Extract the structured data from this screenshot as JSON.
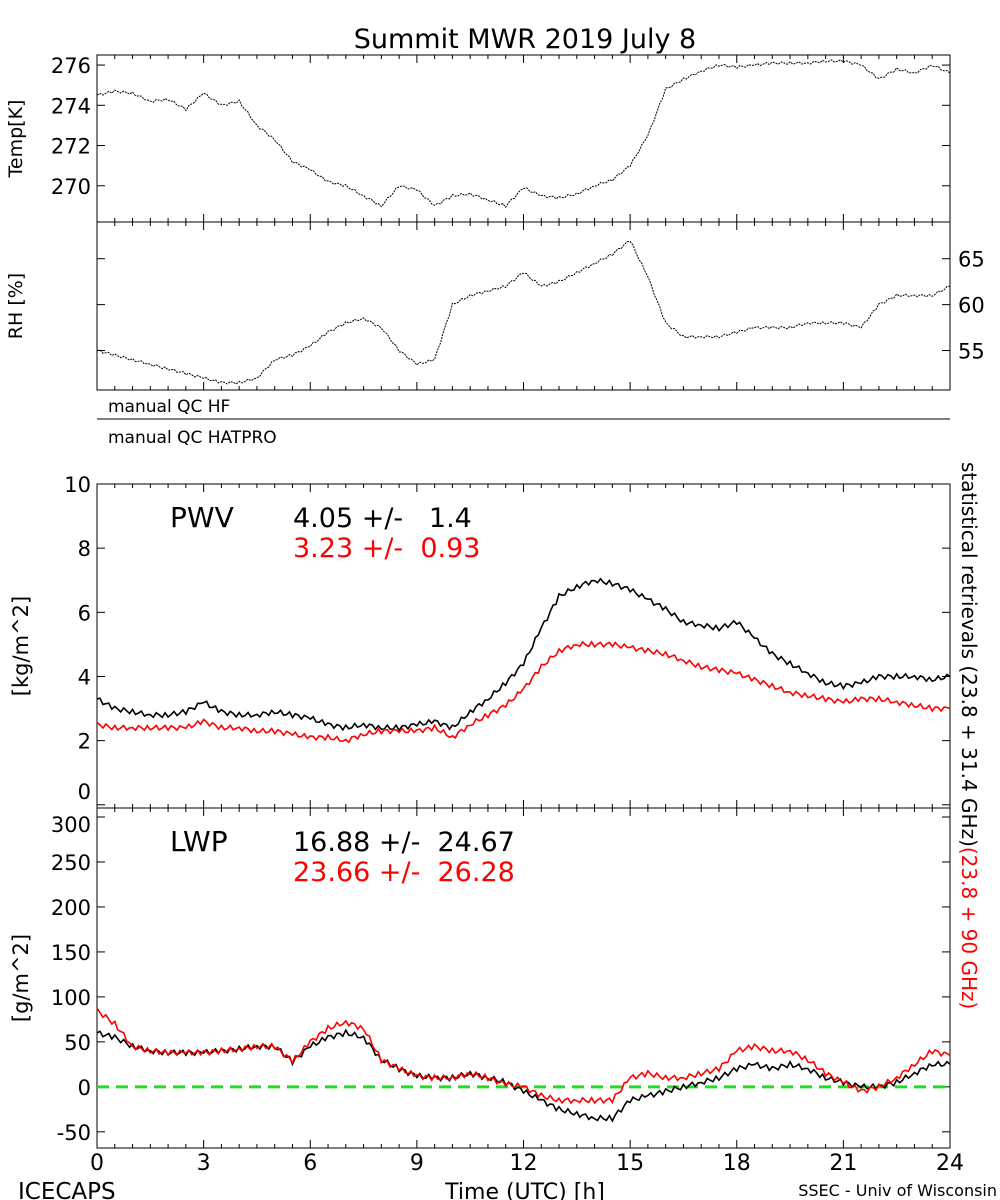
{
  "title": "Summit MWR 2019 July  8",
  "footer": {
    "left": "ICECAPS",
    "center": "Time (UTC) [h]",
    "right": "SSEC - Univ of Wisconsin"
  },
  "qc_labels": [
    "manual QC HF",
    "manual QC HATPRO"
  ],
  "side_label": {
    "black": "statistical retrievals (23.8 + 31.4 GHz)",
    "red": "(23.8 + 90 GHz)"
  },
  "colors": {
    "black": "#000000",
    "red": "#ff0000",
    "zero_line": "#22dd22"
  },
  "chart_data": [
    {
      "type": "line",
      "id": "temp",
      "ylabel": "Temp[K]",
      "ylim": [
        268.2,
        276.5
      ],
      "yticks": [
        270,
        272,
        274,
        276
      ],
      "ytick_side": "left",
      "xlim": [
        0,
        24
      ],
      "x": [
        0,
        0.5,
        1,
        1.5,
        2,
        2.5,
        3,
        3.5,
        4,
        4.5,
        5,
        5.5,
        6,
        6.5,
        7,
        7.5,
        8,
        8.5,
        9,
        9.5,
        10,
        10.5,
        11,
        11.5,
        12,
        12.5,
        13,
        13.5,
        14,
        14.5,
        15,
        15.5,
        16,
        16.5,
        17,
        17.5,
        18,
        18.5,
        19,
        19.5,
        20,
        20.5,
        21,
        21.5,
        22,
        22.5,
        23,
        23.5,
        24
      ],
      "series": [
        {
          "name": "Temperature",
          "color": "black",
          "values": [
            274.5,
            274.7,
            274.6,
            274.2,
            274.3,
            273.8,
            274.6,
            274.0,
            274.2,
            273.0,
            272.3,
            271.2,
            270.8,
            270.2,
            270.0,
            269.5,
            269.0,
            270.0,
            269.8,
            269.0,
            269.5,
            269.6,
            269.3,
            269.0,
            269.9,
            269.5,
            269.4,
            269.6,
            270.0,
            270.3,
            271.0,
            272.5,
            274.8,
            275.3,
            275.7,
            276.0,
            275.9,
            276.0,
            276.1,
            276.1,
            276.1,
            276.2,
            276.2,
            276.0,
            275.3,
            275.8,
            275.6,
            276.0,
            275.6
          ]
        }
      ]
    },
    {
      "type": "line",
      "id": "rh",
      "ylabel": "RH [%]",
      "ylim": [
        50.7,
        69.0
      ],
      "yticks": [
        55,
        60,
        65
      ],
      "ytick_side": "right",
      "xlim": [
        0,
        24
      ],
      "x": [
        0,
        0.5,
        1,
        1.5,
        2,
        2.5,
        3,
        3.5,
        4,
        4.5,
        5,
        5.5,
        6,
        6.5,
        7,
        7.5,
        8,
        8.5,
        9,
        9.5,
        10,
        10.5,
        11,
        11.5,
        12,
        12.5,
        13,
        13.5,
        14,
        14.5,
        15,
        15.5,
        16,
        16.5,
        17,
        17.5,
        18,
        18.5,
        19,
        19.5,
        20,
        20.5,
        21,
        21.5,
        22,
        22.5,
        23,
        23.5,
        24
      ],
      "series": [
        {
          "name": "Relative humidity",
          "color": "black",
          "values": [
            55,
            54.5,
            54,
            53.5,
            53,
            52.5,
            52,
            51.5,
            51.5,
            52,
            54,
            54.5,
            55.5,
            57,
            58,
            58.5,
            57.5,
            55,
            53.5,
            54,
            60,
            61,
            61.5,
            62,
            63.5,
            62,
            62.5,
            63.5,
            64.5,
            65.5,
            67,
            63,
            58,
            56.5,
            56.5,
            56.5,
            57,
            57.5,
            57.5,
            57.5,
            58,
            58,
            58,
            57.5,
            60,
            61,
            61,
            61,
            62
          ]
        }
      ]
    },
    {
      "type": "line",
      "id": "pwv",
      "label": "PWV",
      "ylabel": "[kg/m^2]",
      "ylim": [
        -0.1,
        10
      ],
      "yticks": [
        0,
        2,
        4,
        6,
        8,
        10
      ],
      "ytick_side": "left",
      "xlim": [
        0,
        24
      ],
      "stats": [
        {
          "text": "4.05 +/-   1.4",
          "color": "black"
        },
        {
          "text": "3.23 +/-  0.93",
          "color": "red"
        }
      ],
      "x": [
        0,
        0.5,
        1,
        1.5,
        2,
        2.5,
        3,
        3.5,
        4,
        4.5,
        5,
        5.5,
        6,
        6.5,
        7,
        7.5,
        8,
        8.5,
        9,
        9.5,
        10,
        10.5,
        11,
        11.5,
        12,
        12.5,
        13,
        13.5,
        14,
        14.5,
        15,
        15.5,
        16,
        16.5,
        17,
        17.5,
        18,
        18.5,
        19,
        19.5,
        20,
        20.5,
        21,
        21.5,
        22,
        22.5,
        23,
        23.5,
        24
      ],
      "series": [
        {
          "name": "23.8 + 31.4 GHz",
          "color": "black",
          "values": [
            3.3,
            3.0,
            2.9,
            2.8,
            2.8,
            2.9,
            3.2,
            2.9,
            2.8,
            2.8,
            2.9,
            2.8,
            2.7,
            2.5,
            2.4,
            2.5,
            2.4,
            2.4,
            2.5,
            2.6,
            2.4,
            2.9,
            3.3,
            3.8,
            4.4,
            5.5,
            6.5,
            6.8,
            7.0,
            6.9,
            6.7,
            6.4,
            6.1,
            5.7,
            5.6,
            5.5,
            5.7,
            5.2,
            4.7,
            4.4,
            4.1,
            3.8,
            3.7,
            3.8,
            4.0,
            4.0,
            4.0,
            3.9,
            4.0
          ]
        },
        {
          "name": "23.8 + 90 GHz",
          "color": "red",
          "values": [
            2.5,
            2.4,
            2.4,
            2.4,
            2.4,
            2.4,
            2.6,
            2.4,
            2.4,
            2.3,
            2.3,
            2.2,
            2.1,
            2.1,
            2.0,
            2.2,
            2.3,
            2.3,
            2.3,
            2.4,
            2.1,
            2.5,
            2.8,
            3.1,
            3.6,
            4.3,
            4.8,
            5.0,
            5.0,
            5.0,
            4.9,
            4.8,
            4.7,
            4.5,
            4.3,
            4.2,
            4.1,
            3.9,
            3.7,
            3.5,
            3.4,
            3.3,
            3.2,
            3.3,
            3.3,
            3.2,
            3.1,
            3.0,
            3.0
          ]
        }
      ]
    },
    {
      "type": "line",
      "id": "lwp",
      "label": "LWP",
      "ylabel": "[g/m^2]",
      "ylim": [
        -68,
        310
      ],
      "yticks": [
        -50,
        0,
        50,
        100,
        150,
        200,
        250,
        300
      ],
      "ytick_side": "left",
      "xlim": [
        0,
        24
      ],
      "xticks": [
        0,
        3,
        6,
        9,
        12,
        15,
        18,
        21,
        24
      ],
      "xlabel": "Time (UTC) [h]",
      "reference_line": 0,
      "stats": [
        {
          "text": "16.88 +/-  24.67",
          "color": "black"
        },
        {
          "text": "23.66 +/-  26.28",
          "color": "red"
        }
      ],
      "x": [
        0,
        0.5,
        1,
        1.5,
        2,
        2.5,
        3,
        3.5,
        4,
        4.5,
        5,
        5.5,
        6,
        6.5,
        7,
        7.5,
        8,
        8.5,
        9,
        9.5,
        10,
        10.5,
        11,
        11.5,
        12,
        12.5,
        13,
        13.5,
        14,
        14.5,
        15,
        15.5,
        16,
        16.5,
        17,
        17.5,
        18,
        18.5,
        19,
        19.5,
        20,
        20.5,
        21,
        21.5,
        22,
        22.5,
        23,
        23.5,
        24
      ],
      "series": [
        {
          "name": "23.8 + 31.4 GHz",
          "color": "black",
          "values": [
            60,
            55,
            45,
            40,
            38,
            38,
            38,
            40,
            42,
            45,
            45,
            28,
            45,
            55,
            60,
            55,
            30,
            20,
            12,
            10,
            10,
            15,
            10,
            5,
            -5,
            -15,
            -25,
            -30,
            -35,
            -35,
            -15,
            -10,
            -5,
            0,
            5,
            10,
            20,
            25,
            20,
            25,
            20,
            10,
            5,
            0,
            0,
            5,
            15,
            25,
            25
          ]
        },
        {
          "name": "23.8 + 90 GHz",
          "color": "red",
          "values": [
            85,
            70,
            45,
            40,
            38,
            38,
            38,
            40,
            42,
            45,
            45,
            28,
            50,
            65,
            72,
            65,
            30,
            20,
            12,
            10,
            10,
            15,
            10,
            3,
            0,
            -10,
            -15,
            -15,
            -15,
            -15,
            10,
            15,
            10,
            10,
            15,
            20,
            40,
            45,
            40,
            40,
            30,
            15,
            5,
            -5,
            0,
            10,
            25,
            40,
            35
          ]
        }
      ]
    }
  ]
}
